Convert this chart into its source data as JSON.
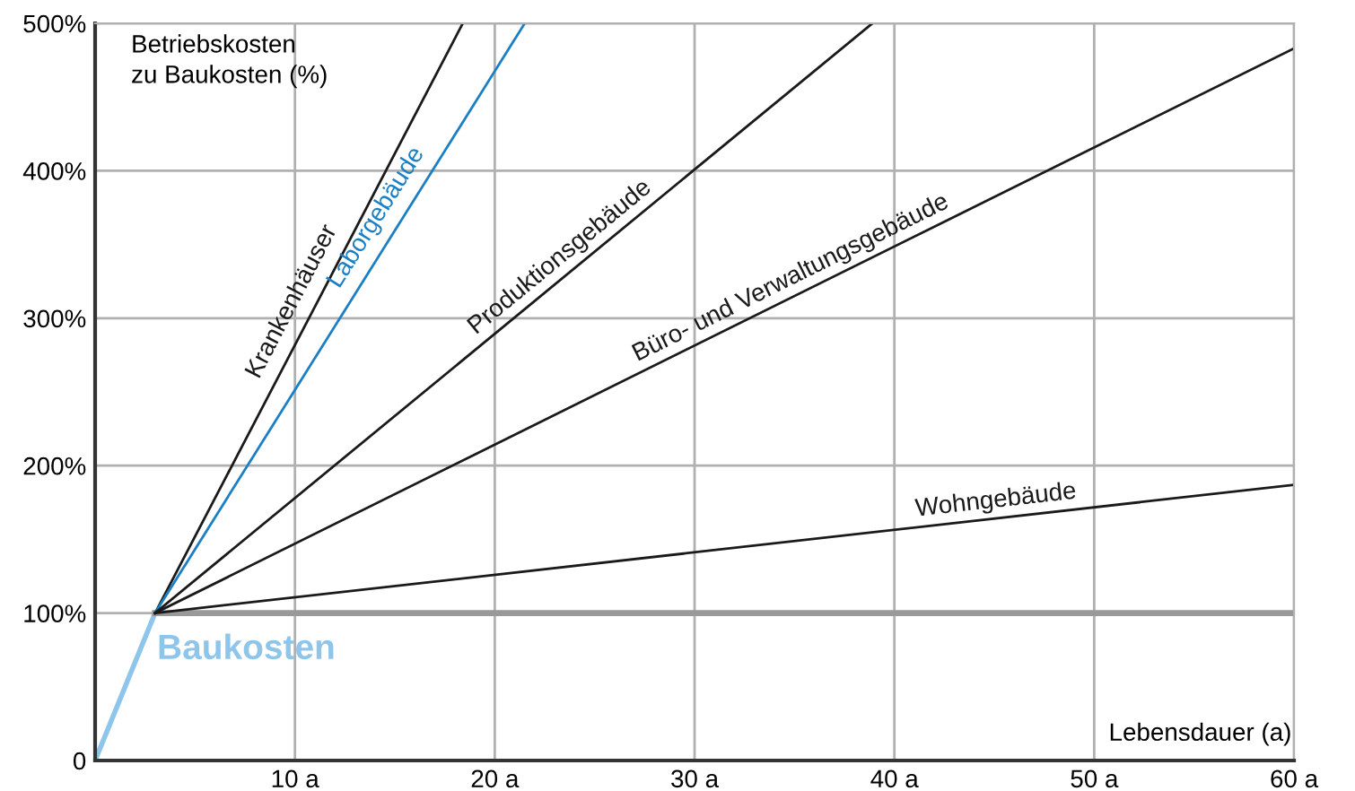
{
  "chart_data": {
    "type": "line",
    "xlabel": "Lebensdauer (a)",
    "ylabel": "Betriebskosten\nzu Baukosten (%)",
    "xlim": [
      0,
      60
    ],
    "ylim": [
      0,
      500
    ],
    "xticks": [
      {
        "value": 10,
        "label": "10 a"
      },
      {
        "value": 20,
        "label": "20 a"
      },
      {
        "value": 30,
        "label": "30 a"
      },
      {
        "value": 40,
        "label": "40 a"
      },
      {
        "value": 50,
        "label": "50 a"
      },
      {
        "value": 60,
        "label": "60 a"
      }
    ],
    "yticks": [
      {
        "value": 0,
        "label": "0"
      },
      {
        "value": 100,
        "label": "100%"
      },
      {
        "value": 200,
        "label": "200%"
      },
      {
        "value": 300,
        "label": "300%"
      },
      {
        "value": 400,
        "label": "400%"
      },
      {
        "value": 500,
        "label": "500%"
      }
    ],
    "grid": true,
    "legend": false,
    "marker": "none",
    "line_style": "solid",
    "series": [
      {
        "name": "Baukosten",
        "color": "#8ec5ea",
        "x": [
          0,
          3
        ],
        "values": [
          0,
          100
        ]
      },
      {
        "color": "#999999",
        "x": [
          3,
          60
        ],
        "values": [
          100,
          100
        ]
      },
      {
        "name": "Krankenhäuser",
        "color": "#1a1a1a",
        "x": [
          3,
          18.4
        ],
        "values": [
          100,
          500
        ]
      },
      {
        "name": "Laborgebäude",
        "color": "#1a7fc4",
        "x": [
          3,
          21.5
        ],
        "values": [
          100,
          500
        ]
      },
      {
        "name": "Produktionsgebäude",
        "color": "#1a1a1a",
        "x": [
          3,
          38.9
        ],
        "values": [
          100,
          500
        ]
      },
      {
        "name": "Büro- und Verwaltungsgebäude",
        "color": "#1a1a1a",
        "x": [
          3,
          60
        ],
        "values": [
          100,
          483
        ]
      },
      {
        "name": "Wohngebäude",
        "color": "#1a1a1a",
        "x": [
          3,
          60
        ],
        "values": [
          100,
          187
        ]
      }
    ]
  }
}
